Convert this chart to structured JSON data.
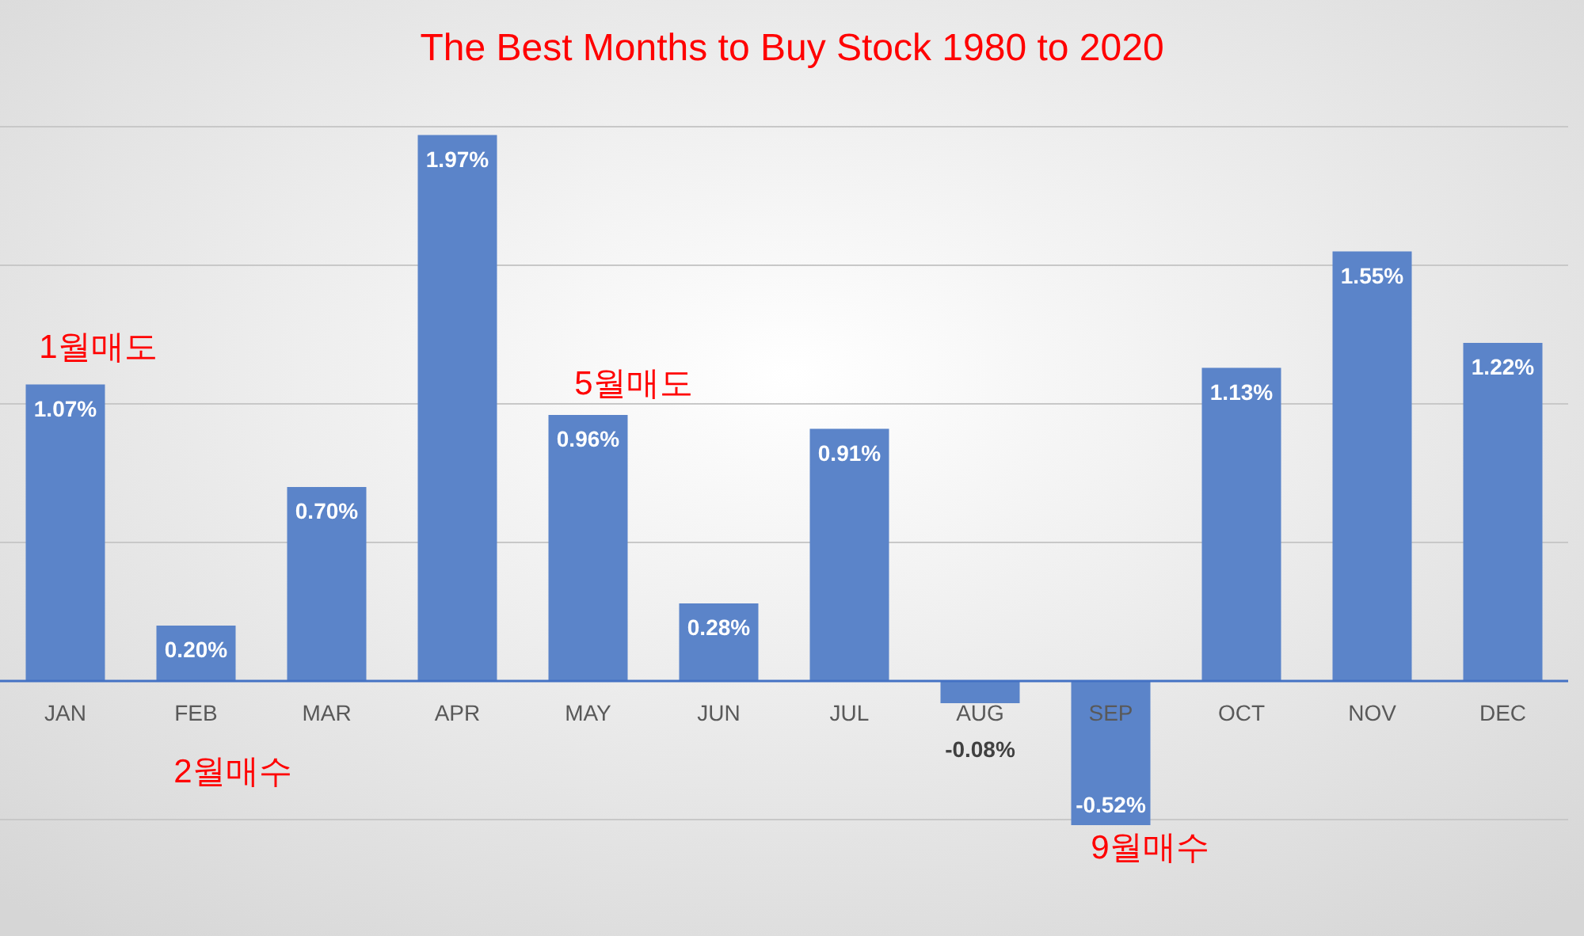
{
  "chart_data": {
    "type": "bar",
    "title": "The Best Months to Buy Stock 1980 to 2020",
    "categories": [
      "JAN",
      "FEB",
      "MAR",
      "APR",
      "MAY",
      "JUN",
      "JUL",
      "AUG",
      "SEP",
      "OCT",
      "NOV",
      "DEC"
    ],
    "values": [
      1.07,
      0.2,
      0.7,
      1.97,
      0.96,
      0.28,
      0.91,
      -0.08,
      -0.52,
      1.13,
      1.55,
      1.22
    ],
    "value_labels": [
      "1.07%",
      "0.20%",
      "0.70%",
      "1.97%",
      "0.96%",
      "0.28%",
      "0.91%",
      "-0.08%",
      "-0.52%",
      "1.13%",
      "1.55%",
      "1.22%"
    ],
    "color": "#5b84c9",
    "yticks": [
      {
        "value": -0.5,
        "label": null
      },
      {
        "value": 0,
        "label": null
      },
      {
        "value": 0.5,
        "label": null
      },
      {
        "value": 1.0,
        "label": null
      },
      {
        "value": 1.5,
        "label": null
      },
      {
        "value": 2.0,
        "label": null
      }
    ],
    "tick_labels": "x",
    "grid": "y",
    "annotations": [
      "1월매도",
      "2월매수",
      "5월매도",
      "9월매수"
    ]
  }
}
